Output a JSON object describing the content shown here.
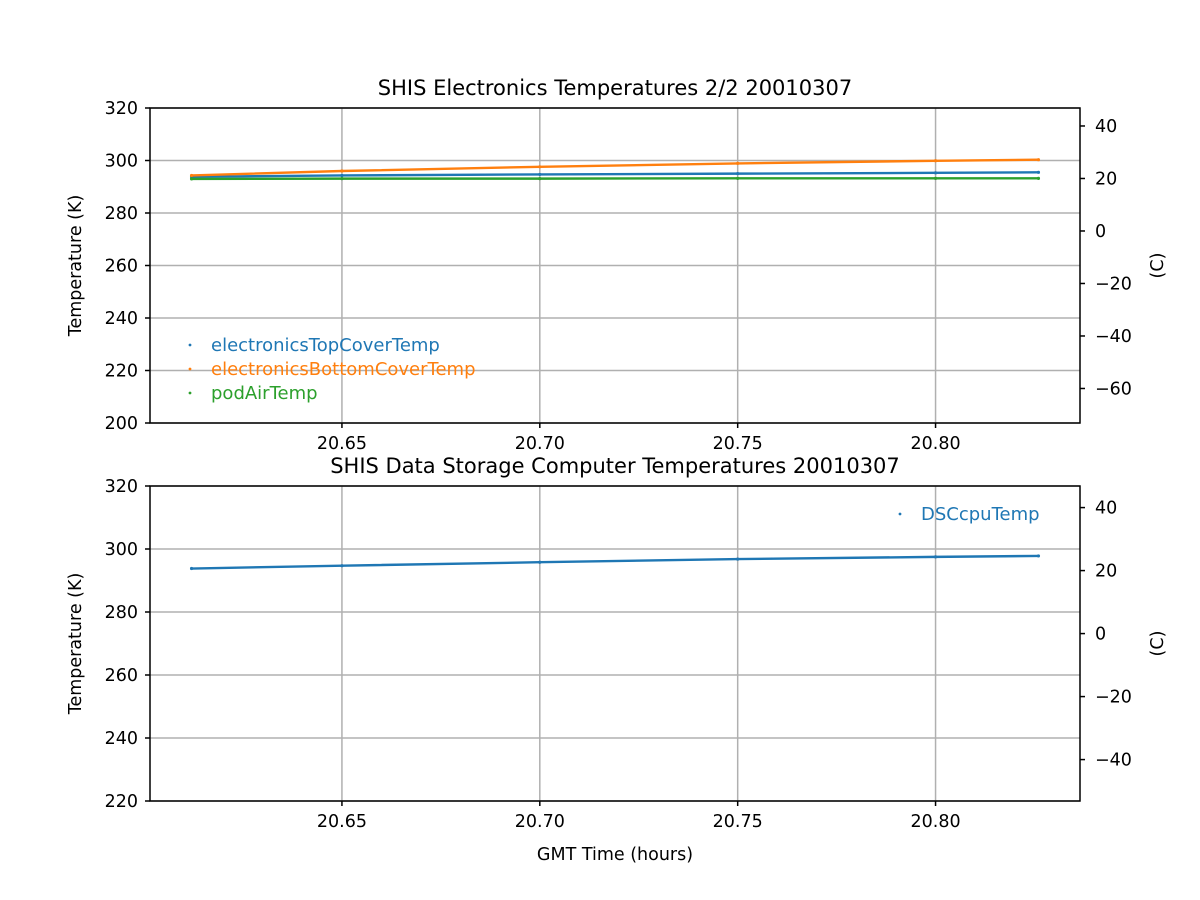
{
  "chart_data": [
    {
      "type": "scatter",
      "title": "SHIS Electronics Temperatures 2/2 20010307",
      "xlabel": "",
      "ylabel": "Temperature (K)",
      "y2label": "(C)",
      "xlim": [
        20.6015,
        20.8365
      ],
      "ylim": [
        200,
        320
      ],
      "y2lim": [
        -73.15,
        46.85
      ],
      "xticks": [
        20.65,
        20.7,
        20.75,
        20.8
      ],
      "xtick_labels": [
        "20.65",
        "20.70",
        "20.75",
        "20.80"
      ],
      "yticks": [
        200,
        220,
        240,
        260,
        280,
        300,
        320
      ],
      "ytick_labels": [
        "200",
        "220",
        "240",
        "260",
        "280",
        "300",
        "320"
      ],
      "y2ticks": [
        -60,
        -40,
        -20,
        0,
        20,
        40
      ],
      "y2tick_labels": [
        "−60",
        "−40",
        "−20",
        "0",
        "20",
        "40"
      ],
      "grid": true,
      "legend_position": "lower-left",
      "series": [
        {
          "name": "electronicsTopCoverTemp",
          "color": "#1f77b4",
          "x": [
            20.612,
            20.65,
            20.7,
            20.75,
            20.8,
            20.826
          ],
          "y": [
            293.8,
            294.3,
            294.7,
            295.0,
            295.3,
            295.5
          ]
        },
        {
          "name": "electronicsBottomCoverTemp",
          "color": "#ff7f0e",
          "x": [
            20.612,
            20.65,
            20.7,
            20.75,
            20.8,
            20.826
          ],
          "y": [
            294.3,
            296.0,
            297.6,
            298.9,
            299.9,
            300.3
          ]
        },
        {
          "name": "podAirTemp",
          "color": "#2ca02c",
          "x": [
            20.612,
            20.65,
            20.7,
            20.75,
            20.8,
            20.826
          ],
          "y": [
            293.0,
            293.1,
            293.1,
            293.2,
            293.2,
            293.2
          ]
        }
      ]
    },
    {
      "type": "scatter",
      "title": "SHIS Data Storage Computer Temperatures 20010307",
      "xlabel": "GMT Time (hours)",
      "ylabel": "Temperature (K)",
      "y2label": "(C)",
      "xlim": [
        20.6015,
        20.8365
      ],
      "ylim": [
        220,
        320
      ],
      "y2lim": [
        -53.15,
        46.85
      ],
      "xticks": [
        20.65,
        20.7,
        20.75,
        20.8
      ],
      "xtick_labels": [
        "20.65",
        "20.70",
        "20.75",
        "20.80"
      ],
      "yticks": [
        220,
        240,
        260,
        280,
        300,
        320
      ],
      "ytick_labels": [
        "220",
        "240",
        "260",
        "280",
        "300",
        "320"
      ],
      "y2ticks": [
        -40,
        -20,
        0,
        20,
        40
      ],
      "y2tick_labels": [
        "−40",
        "−20",
        "0",
        "20",
        "40"
      ],
      "grid": true,
      "legend_position": "upper-right",
      "series": [
        {
          "name": "DSCcpuTemp",
          "color": "#1f77b4",
          "x": [
            20.612,
            20.65,
            20.7,
            20.75,
            20.8,
            20.826
          ],
          "y": [
            293.8,
            294.7,
            295.8,
            296.8,
            297.5,
            297.8
          ]
        }
      ]
    }
  ]
}
